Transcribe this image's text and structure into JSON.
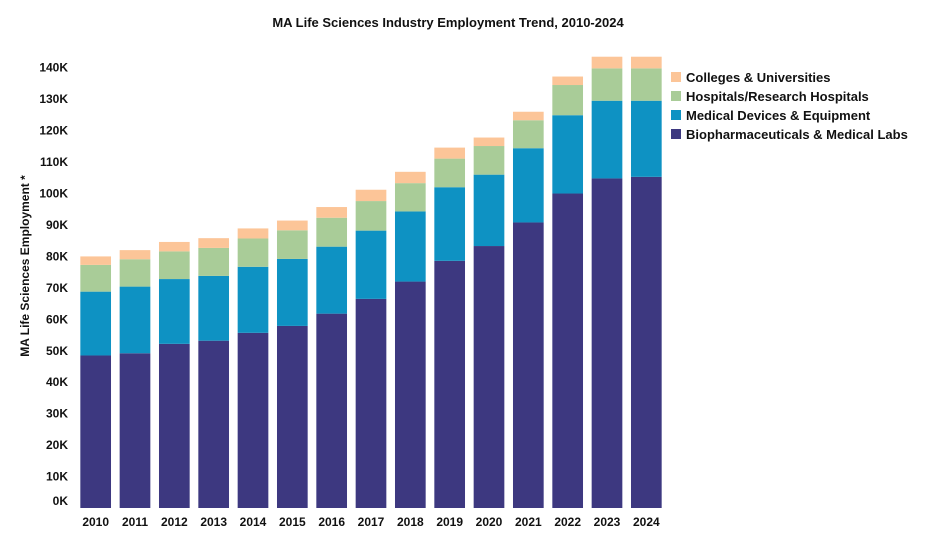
{
  "chart_data": {
    "type": "bar",
    "stacked": true,
    "title": "MA Life Sciences Industry Employment Trend, 2010-2024",
    "xlabel": "",
    "ylabel": "MA Life Sciences Employment *",
    "ylim": [
      0,
      145000
    ],
    "y_ticks": [
      {
        "value": 0,
        "label": "0K"
      },
      {
        "value": 10000,
        "label": "10K"
      },
      {
        "value": 20000,
        "label": "20K"
      },
      {
        "value": 30000,
        "label": "30K"
      },
      {
        "value": 40000,
        "label": "40K"
      },
      {
        "value": 50000,
        "label": "50K"
      },
      {
        "value": 60000,
        "label": "60K"
      },
      {
        "value": 70000,
        "label": "70K"
      },
      {
        "value": 80000,
        "label": "80K"
      },
      {
        "value": 90000,
        "label": "90K"
      },
      {
        "value": 100000,
        "label": "100K"
      },
      {
        "value": 110000,
        "label": "110K"
      },
      {
        "value": 120000,
        "label": "120K"
      },
      {
        "value": 130000,
        "label": "130K"
      },
      {
        "value": 140000,
        "label": "140K"
      }
    ],
    "grid": false,
    "legend_position": "top-right",
    "categories": [
      "2010",
      "2011",
      "2012",
      "2013",
      "2014",
      "2015",
      "2016",
      "2017",
      "2018",
      "2019",
      "2020",
      "2021",
      "2022",
      "2023",
      "2024"
    ],
    "series": [
      {
        "name": "Biopharmaceuticals & Medical Labs",
        "color": "#3d3880",
        "values": [
          48500,
          49200,
          52200,
          53200,
          55700,
          57900,
          61800,
          66500,
          72000,
          78600,
          83300,
          90800,
          100000,
          104800,
          105300
        ]
      },
      {
        "name": "Medical Devices & Equipment",
        "color": "#0e92c3",
        "values": [
          20300,
          21200,
          20600,
          20600,
          21000,
          21300,
          21300,
          21700,
          22300,
          23400,
          22700,
          23600,
          24900,
          24700,
          24200
        ]
      },
      {
        "name": "Hospitals/Research Hospitals",
        "color": "#a9cc98",
        "values": [
          8500,
          8700,
          8800,
          8900,
          9000,
          9100,
          9200,
          9400,
          9000,
          9100,
          9100,
          8900,
          9600,
          10300,
          10300
        ]
      },
      {
        "name": "Colleges & Universities",
        "color": "#fcc598",
        "values": [
          2700,
          2900,
          3000,
          3100,
          3200,
          3100,
          3400,
          3600,
          3600,
          3500,
          2700,
          2700,
          2700,
          3700,
          3700
        ]
      }
    ]
  }
}
